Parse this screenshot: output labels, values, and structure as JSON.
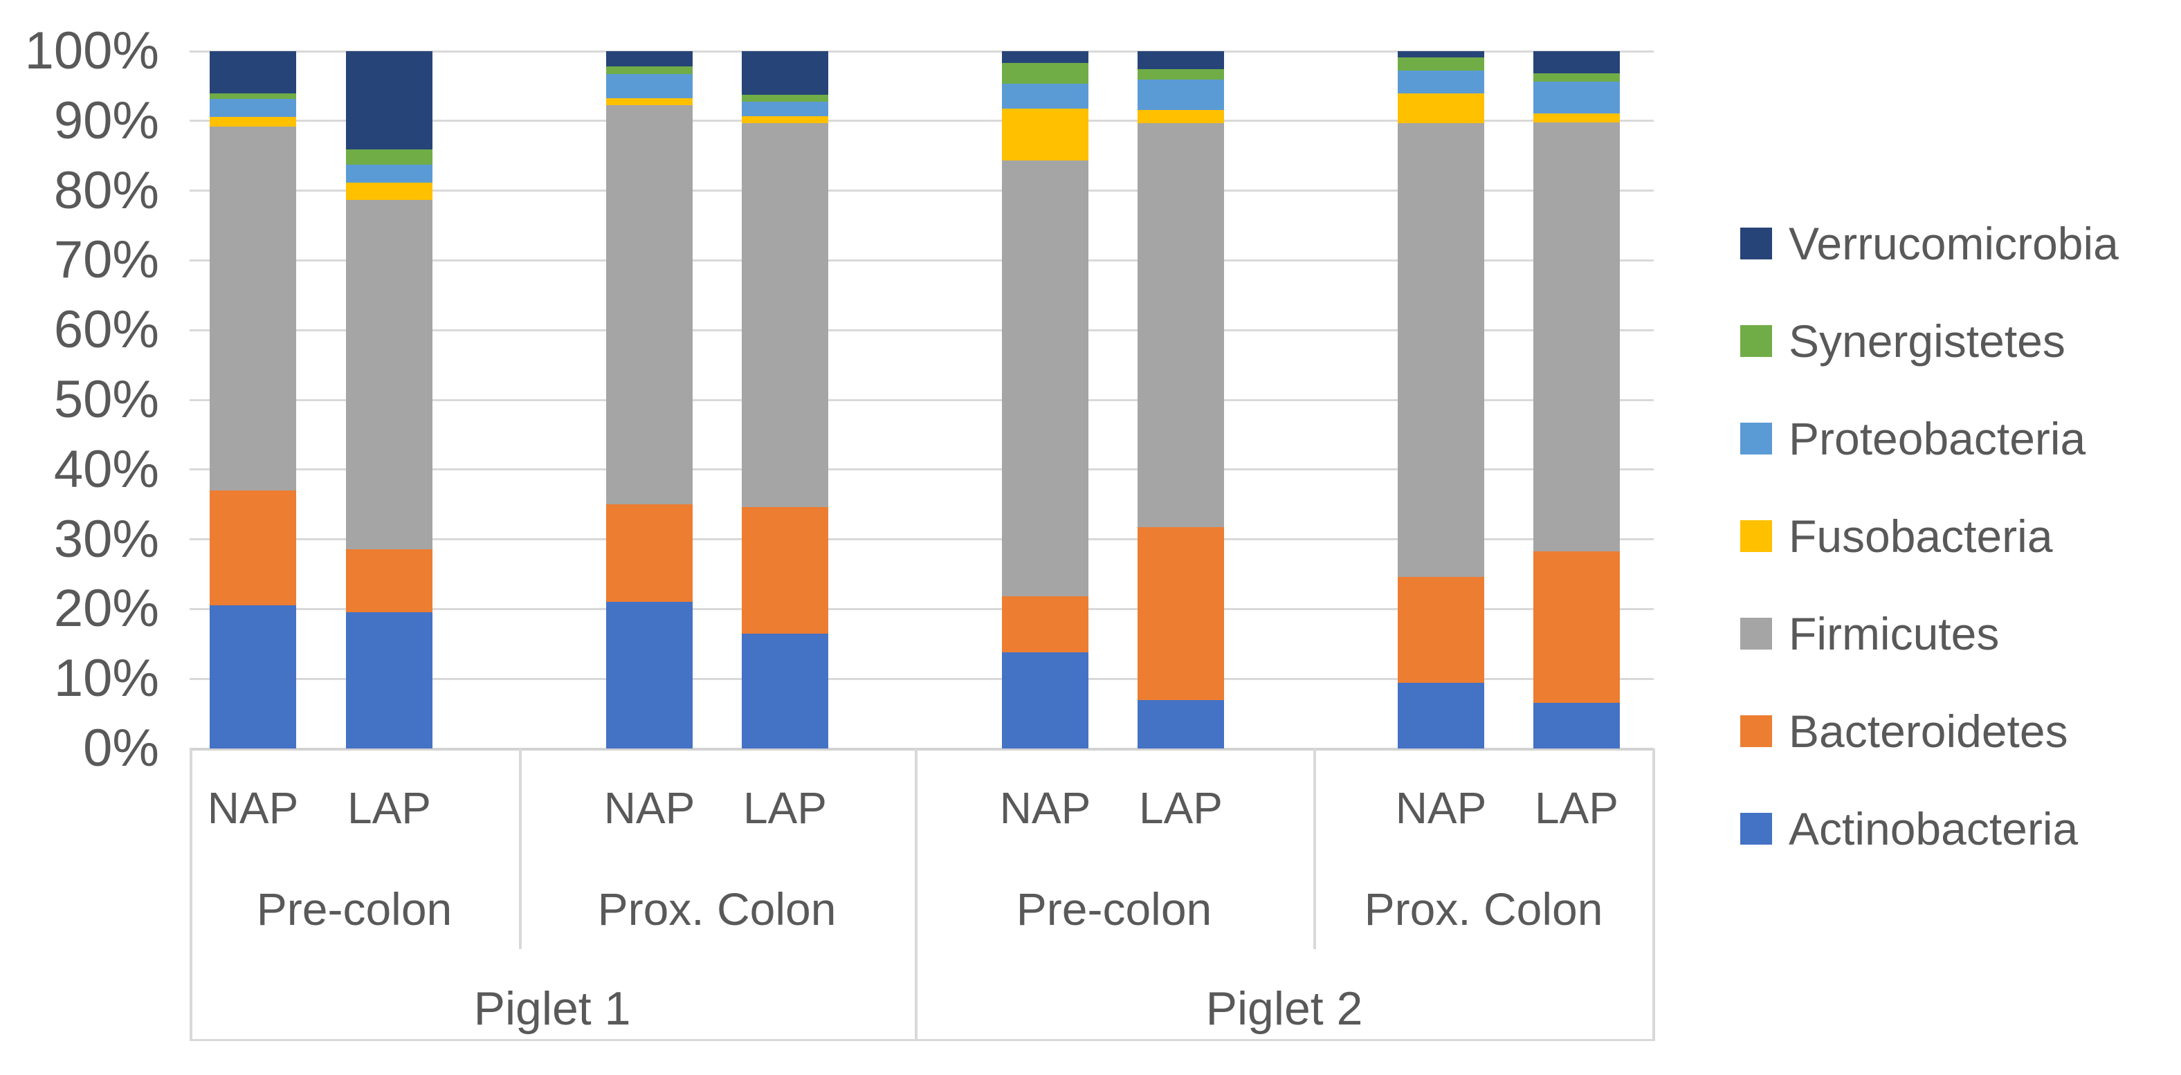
{
  "chart_data": {
    "type": "bar",
    "subtype": "100%-stacked-column",
    "title": "",
    "xlabel": "",
    "ylabel": "",
    "units": "percent",
    "y_axis": {
      "min": 0,
      "max": 100,
      "step": 10,
      "tick_labels": [
        "0%",
        "10%",
        "20%",
        "30%",
        "40%",
        "50%",
        "60%",
        "70%",
        "80%",
        "90%",
        "100%"
      ],
      "grid": true
    },
    "legend_position": "right",
    "legend_order_top_to_bottom": [
      "Verrucomicrobia",
      "Synergistetes",
      "Proteobacteria",
      "Fusobacteria",
      "Firmicutes",
      "Bacteroidetes",
      "Actinobacteria"
    ],
    "categories": [
      {
        "ap": "NAP",
        "tissue": "Pre-colon",
        "piglet": "Piglet 1"
      },
      {
        "ap": "LAP",
        "tissue": "Pre-colon",
        "piglet": "Piglet 1"
      },
      {
        "ap": "NAP",
        "tissue": "Prox. Colon",
        "piglet": "Piglet 1"
      },
      {
        "ap": "LAP",
        "tissue": "Prox. Colon",
        "piglet": "Piglet 1"
      },
      {
        "ap": "NAP",
        "tissue": "Pre-colon",
        "piglet": "Piglet 2"
      },
      {
        "ap": "LAP",
        "tissue": "Pre-colon",
        "piglet": "Piglet 2"
      },
      {
        "ap": "NAP",
        "tissue": "Prox. Colon",
        "piglet": "Piglet 2"
      },
      {
        "ap": "LAP",
        "tissue": "Prox. Colon",
        "piglet": "Piglet 2"
      }
    ],
    "category_axis_levels": {
      "level2_groups": [
        {
          "label": "Pre-colon",
          "span": [
            0,
            1
          ]
        },
        {
          "label": "Prox. Colon",
          "span": [
            2,
            3
          ]
        },
        {
          "label": "Pre-colon",
          "span": [
            4,
            5
          ]
        },
        {
          "label": "Prox. Colon",
          "span": [
            6,
            7
          ]
        }
      ],
      "level3_groups": [
        {
          "label": "Piglet 1",
          "span": [
            0,
            3
          ]
        },
        {
          "label": "Piglet 2",
          "span": [
            4,
            7
          ]
        }
      ]
    },
    "series": [
      {
        "name": "Actinobacteria",
        "color": "#4472C4",
        "values": [
          20.5,
          19.5,
          21.0,
          16.5,
          13.8,
          6.9,
          9.4,
          6.5
        ]
      },
      {
        "name": "Bacteroidetes",
        "color": "#ED7D31",
        "values": [
          16.5,
          9.1,
          14.0,
          18.1,
          8.0,
          24.8,
          15.2,
          21.8
        ]
      },
      {
        "name": "Firmicutes",
        "color": "#A5A5A5",
        "values": [
          52.2,
          50.1,
          57.3,
          55.1,
          62.5,
          58.0,
          65.1,
          61.5
        ]
      },
      {
        "name": "Fusobacteria",
        "color": "#FFC000",
        "values": [
          1.4,
          2.5,
          1.0,
          1.0,
          7.5,
          1.9,
          4.3,
          1.3
        ]
      },
      {
        "name": "Proteobacteria",
        "color": "#5B9BD5",
        "values": [
          2.6,
          2.5,
          3.4,
          2.1,
          3.5,
          4.3,
          3.2,
          4.5
        ]
      },
      {
        "name": "Synergistetes",
        "color": "#70AD47",
        "values": [
          0.8,
          2.2,
          1.1,
          1.0,
          3.0,
          1.5,
          1.9,
          1.2
        ]
      },
      {
        "name": "Verrucomicrobia",
        "color": "#264478",
        "values": [
          6.0,
          14.1,
          2.2,
          6.2,
          1.7,
          2.6,
          0.9,
          3.2
        ]
      }
    ],
    "style": {
      "gridline_color": "#D9D9D9",
      "axis_line_color": "#D2D2D2",
      "text_color": "#595959",
      "background": "#FFFFFF"
    }
  }
}
